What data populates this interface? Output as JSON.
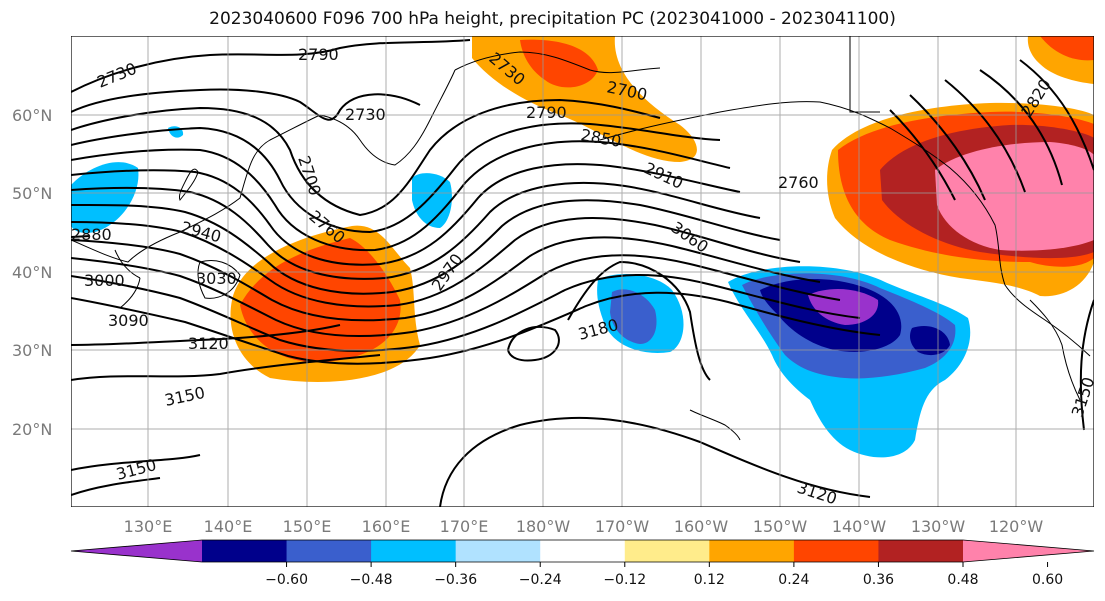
{
  "title": "2023040600 F096 700 hPa height, precipitation PC (2023041000 - 2023041100)",
  "lat_labels": [
    "60°N",
    "50°N",
    "40°N",
    "30°N",
    "20°N"
  ],
  "lon_labels": [
    "130°E",
    "140°E",
    "150°E",
    "160°E",
    "170°E",
    "180°W",
    "170°W",
    "160°W",
    "150°W",
    "140°W",
    "130°W",
    "120°W"
  ],
  "contour_labels": [
    "2730",
    "2790",
    "2730",
    "2700",
    "2790",
    "2730",
    "2850",
    "2700",
    "2760",
    "2910",
    "2760",
    "2820",
    "2940",
    "3060",
    "2970",
    "3000",
    "3030",
    "3090",
    "3120",
    "3180",
    "3150",
    "3150",
    "3120",
    "3150",
    "2880"
  ],
  "colorbar": {
    "ticks": [
      "−0.60",
      "−0.48",
      "−0.36",
      "−0.24",
      "−0.12",
      "0.12",
      "0.24",
      "0.36",
      "0.48",
      "0.60"
    ],
    "colors": [
      "#9932cc",
      "#00008b",
      "#3a5fcd",
      "#00bfff",
      "#b0e2ff",
      "#ffffff",
      "#ffec8b",
      "#ffa500",
      "#ff4500",
      "#b22222",
      "#ff82ab"
    ]
  }
}
